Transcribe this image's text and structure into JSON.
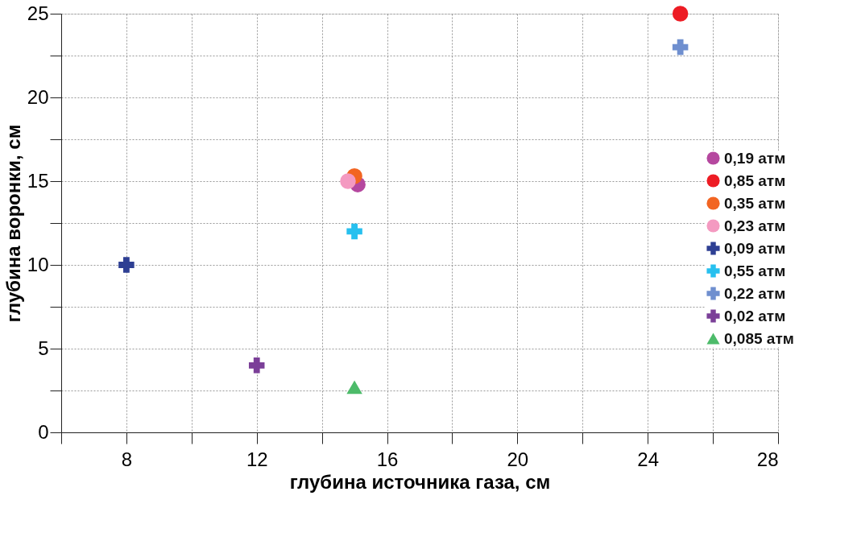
{
  "chart_data": {
    "type": "scatter",
    "xlabel": "глубина источника газа, см",
    "ylabel": "глубина воронки, см",
    "xlim": [
      6,
      28
    ],
    "ylim": [
      0,
      25
    ],
    "xticks": [
      {
        "value": 6,
        "label": null
      },
      8,
      {
        "value": 10,
        "label": null
      },
      12,
      {
        "value": 14,
        "label": null
      },
      16,
      {
        "value": 18,
        "label": null
      },
      20,
      {
        "value": 22,
        "label": null
      },
      24,
      {
        "value": 26,
        "label": null
      },
      28
    ],
    "yticks": [
      0,
      {
        "value": 2.5,
        "label": null
      },
      5,
      {
        "value": 7.5,
        "label": null
      },
      10,
      {
        "value": 12.5,
        "label": null
      },
      15,
      {
        "value": 17.5,
        "label": null
      },
      20,
      {
        "value": 22.5,
        "label": null
      },
      25
    ],
    "grid": true,
    "legend": "right",
    "series": [
      {
        "name": "0,19 атм",
        "color": "#b5489f",
        "marker": "circle",
        "x": [
          15.1
        ],
        "values": [
          14.8
        ]
      },
      {
        "name": "0,85 атм",
        "color": "#ed1c24",
        "marker": "circle",
        "x": [
          25
        ],
        "values": [
          25
        ]
      },
      {
        "name": "0,35 атм",
        "color": "#f26522",
        "marker": "circle",
        "x": [
          15
        ],
        "values": [
          15.3
        ]
      },
      {
        "name": "0,23 атм",
        "color": "#f49ac1",
        "marker": "circle",
        "x": [
          14.8
        ],
        "values": [
          15
        ]
      },
      {
        "name": "0,09 атм",
        "color": "#2e3f93",
        "marker": "cross",
        "x": [
          8
        ],
        "values": [
          10
        ]
      },
      {
        "name": "0,55 атм",
        "color": "#27c0ef",
        "marker": "cross",
        "x": [
          15
        ],
        "values": [
          12
        ]
      },
      {
        "name": "0,22 атм",
        "color": "#6f8fcf",
        "marker": "cross",
        "x": [
          25
        ],
        "values": [
          23
        ]
      },
      {
        "name": "0,02 атм",
        "color": "#7b3f98",
        "marker": "cross",
        "x": [
          12
        ],
        "values": [
          4
        ]
      },
      {
        "name": "0,085 атм",
        "color": "#4dbb6a",
        "marker": "triangle",
        "x": [
          15
        ],
        "values": [
          2.7
        ]
      }
    ]
  }
}
